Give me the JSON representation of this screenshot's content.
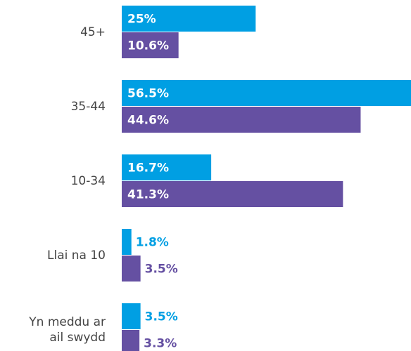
{
  "chart_data": {
    "type": "bar",
    "orientation": "horizontal",
    "categories": [
      "45+",
      "35-44",
      "10-34",
      "Llai na 10",
      "Yn meddu ar ail swydd"
    ],
    "series": [
      {
        "color": "#009fe3",
        "values": [
          25,
          56.5,
          16.7,
          1.8,
          3.5
        ],
        "value_labels": [
          "25%",
          "56.5%",
          "16.7%",
          "1.8%",
          "3.5%"
        ]
      },
      {
        "color": "#6550a2",
        "values": [
          10.6,
          44.6,
          41.3,
          3.5,
          3.3
        ],
        "value_labels": [
          "10.6%",
          "44.6%",
          "41.3%",
          "3.5%",
          "3.3%"
        ]
      }
    ],
    "xlim": [
      0,
      54
    ]
  }
}
